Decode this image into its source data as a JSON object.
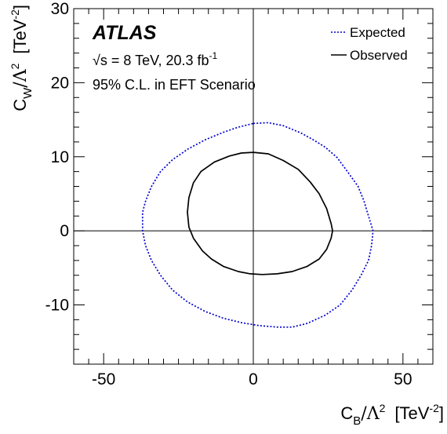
{
  "chart_data": {
    "type": "line",
    "experiment": "ATLAS",
    "info_line1": "√s = 8 TeV, 20.3 fb",
    "info_line1_sup": "-1",
    "info_line2": "95% C.L. in EFT Scenario",
    "xlabel": {
      "base": "C",
      "sub": "B",
      "over": "/Λ",
      "sup1": "2",
      "unit": "[TeV",
      "unit_sup": "-2",
      "close": "]"
    },
    "ylabel": {
      "base": "C",
      "sub": "W",
      "over": "/Λ",
      "sup1": "2",
      "unit": "[TeV",
      "unit_sup": "-2",
      "close": "]"
    },
    "xlim": [
      -60,
      60
    ],
    "ylim": [
      -18,
      30
    ],
    "xticks": [
      -50,
      0,
      50
    ],
    "yticks": [
      -10,
      0,
      10,
      20,
      30
    ],
    "xtick_labels": [
      "-50",
      "0",
      "50"
    ],
    "ytick_labels": [
      "-10",
      "0",
      "10",
      "20",
      "30"
    ],
    "legend_placement": "top-right",
    "grid": false,
    "series": [
      {
        "name": "Expected",
        "color": "#0000cc",
        "style": "dotted",
        "points": [
          [
            0,
            14.5
          ],
          [
            5,
            14.6
          ],
          [
            10,
            14.2
          ],
          [
            16,
            13.2
          ],
          [
            20,
            12.3
          ],
          [
            24,
            11.3
          ],
          [
            28,
            9.9
          ],
          [
            32,
            7.7
          ],
          [
            35,
            6.0
          ],
          [
            37,
            4.0
          ],
          [
            38.5,
            2.0
          ],
          [
            40,
            0.0
          ],
          [
            39.5,
            -2.0
          ],
          [
            38.5,
            -4.0
          ],
          [
            36,
            -6.0
          ],
          [
            33,
            -8.0
          ],
          [
            29,
            -10.0
          ],
          [
            24,
            -11.4
          ],
          [
            18,
            -12.5
          ],
          [
            13,
            -13.0
          ],
          [
            8,
            -13.0
          ],
          [
            2,
            -12.8
          ],
          [
            -4,
            -12.4
          ],
          [
            -10,
            -11.8
          ],
          [
            -16,
            -10.9
          ],
          [
            -22,
            -9.6
          ],
          [
            -27,
            -8.0
          ],
          [
            -31,
            -6.0
          ],
          [
            -34,
            -4.0
          ],
          [
            -36,
            -2.0
          ],
          [
            -37,
            0.0
          ],
          [
            -37,
            2.5
          ],
          [
            -36,
            4.0
          ],
          [
            -34,
            6.0
          ],
          [
            -31,
            8.0
          ],
          [
            -27,
            9.6
          ],
          [
            -22,
            11.0
          ],
          [
            -16,
            12.3
          ],
          [
            -10,
            13.3
          ],
          [
            -5,
            14.0
          ],
          [
            0,
            14.5
          ]
        ]
      },
      {
        "name": "Observed",
        "color": "#000000",
        "style": "solid",
        "points": [
          [
            0,
            10.6
          ],
          [
            5,
            10.4
          ],
          [
            10,
            9.5
          ],
          [
            15,
            8.3
          ],
          [
            19,
            6.6
          ],
          [
            22,
            5.0
          ],
          [
            24.5,
            3.0
          ],
          [
            26,
            1.0
          ],
          [
            26.5,
            0.0
          ],
          [
            26,
            -1.0
          ],
          [
            24.5,
            -2.5
          ],
          [
            22,
            -3.8
          ],
          [
            18,
            -4.8
          ],
          [
            13,
            -5.5
          ],
          [
            8,
            -5.8
          ],
          [
            3,
            -5.9
          ],
          [
            -1,
            -5.8
          ],
          [
            -5,
            -5.5
          ],
          [
            -10,
            -4.8
          ],
          [
            -14,
            -3.8
          ],
          [
            -17,
            -2.7
          ],
          [
            -20,
            -1.0
          ],
          [
            -21.5,
            0.5
          ],
          [
            -22,
            2.5
          ],
          [
            -21.5,
            4.5
          ],
          [
            -20,
            6.5
          ],
          [
            -17.5,
            8.0
          ],
          [
            -13,
            9.3
          ],
          [
            -8,
            10.1
          ],
          [
            -4,
            10.5
          ],
          [
            0,
            10.6
          ]
        ]
      }
    ]
  }
}
